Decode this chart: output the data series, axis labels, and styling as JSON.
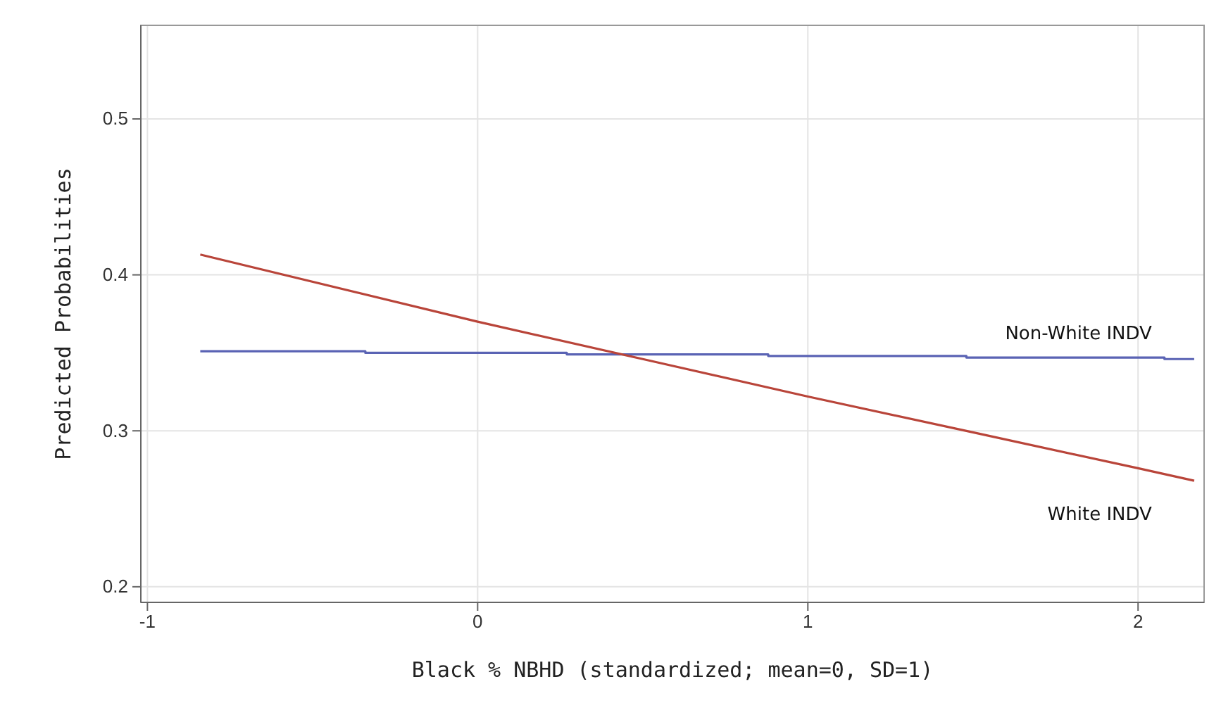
{
  "chart_data": {
    "type": "line",
    "xlabel": "Black % NBHD (standardized; mean=0, SD=1)",
    "ylabel": "Predicted Probabilities",
    "xlim": [
      -1.02,
      2.2
    ],
    "ylim": [
      0.19,
      0.56
    ],
    "xticks": [
      -1,
      0,
      1,
      2
    ],
    "yticks": [
      0.2,
      0.3,
      0.4,
      0.5
    ],
    "grid": true,
    "series": [
      {
        "name": "Non-White INDV",
        "color": "#5a63b4",
        "x": [
          -0.84,
          -0.34,
          -0.34,
          0.27,
          0.27,
          0.88,
          0.88,
          1.48,
          1.48,
          2.08,
          2.08,
          2.17
        ],
        "values": [
          0.351,
          0.351,
          0.35,
          0.35,
          0.349,
          0.349,
          0.348,
          0.348,
          0.347,
          0.347,
          0.346,
          0.346
        ]
      },
      {
        "name": "White INDV",
        "color": "#b9453a",
        "x": [
          -0.84,
          0,
          0.5,
          1,
          1.5,
          2,
          2.17
        ],
        "values": [
          0.413,
          0.37,
          0.346,
          0.322,
          0.299,
          0.276,
          0.268
        ]
      }
    ]
  }
}
